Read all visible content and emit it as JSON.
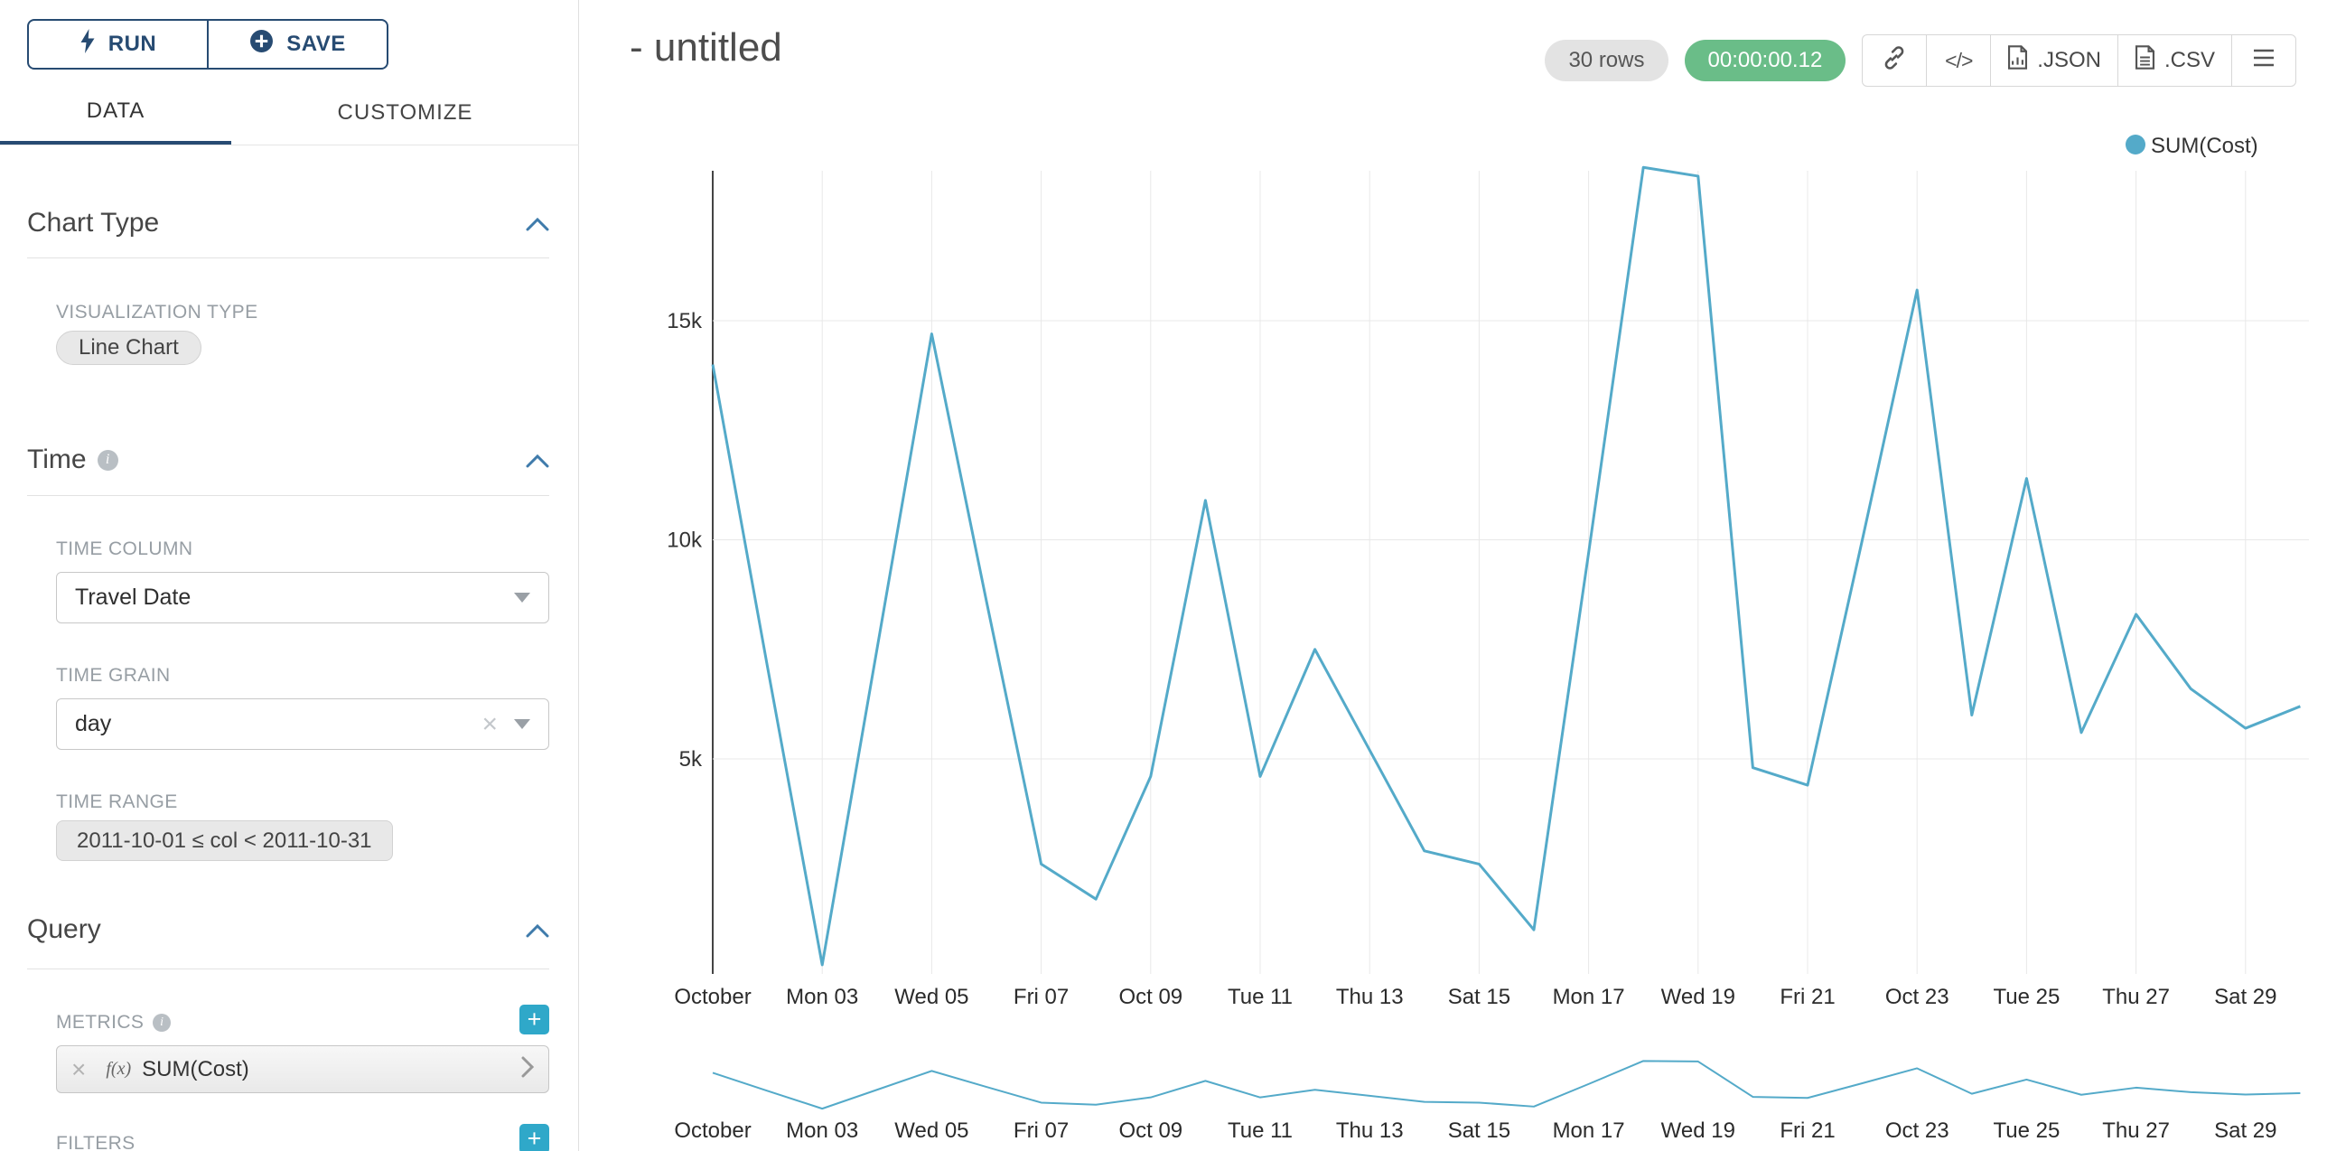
{
  "colors": {
    "accent_teal": "#2fa8c9",
    "navy": "#274b72",
    "timer_green": "#6abd88",
    "line": "#54aac9"
  },
  "sidebar": {
    "run_label": "RUN",
    "save_label": "SAVE",
    "tabs": [
      {
        "label": "DATA"
      },
      {
        "label": "CUSTOMIZE"
      }
    ],
    "sections": {
      "chart_type": {
        "title": "Chart Type",
        "viz_label": "VISUALIZATION TYPE",
        "viz_value": "Line Chart"
      },
      "time": {
        "title": "Time",
        "column_label": "TIME COLUMN",
        "column_value": "Travel Date",
        "grain_label": "TIME GRAIN",
        "grain_value": "day",
        "range_label": "TIME RANGE",
        "range_value": "2011-10-01 ≤ col < 2011-10-31"
      },
      "query": {
        "title": "Query",
        "metrics_label": "METRICS",
        "metric_fx": "f(x)",
        "metric_value": "SUM(Cost)",
        "filters_label": "FILTERS"
      }
    }
  },
  "header": {
    "title": "- untitled",
    "rows_badge": "30 rows",
    "timer_badge": "00:00:00.12",
    "embed_icon_text": "</>",
    "json_label": ".JSON",
    "csv_label": ".CSV"
  },
  "chart_data": {
    "type": "line",
    "title": "",
    "legend": [
      "SUM(Cost)"
    ],
    "legend_position": "top-right",
    "grid": true,
    "has_preview_strip": true,
    "line_color": "#54aac9",
    "xlabel": "",
    "ylabel": "",
    "ylim": [
      0,
      18600
    ],
    "y_tick_values": [
      5000,
      10000,
      15000
    ],
    "y_tick_labels": [
      "5k",
      "10k",
      "15k"
    ],
    "x_tick_labels": [
      "October",
      "Mon 03",
      "Wed 05",
      "Fri 07",
      "Oct 09",
      "Tue 11",
      "Thu 13",
      "Sat 15",
      "Mon 17",
      "Wed 19",
      "Fri 21",
      "Oct 23",
      "Tue 25",
      "Thu 27",
      "Sat 29"
    ],
    "x": [
      "2011-10-01",
      "2011-10-02",
      "2011-10-03",
      "2011-10-04",
      "2011-10-05",
      "2011-10-06",
      "2011-10-07",
      "2011-10-08",
      "2011-10-09",
      "2011-10-10",
      "2011-10-11",
      "2011-10-12",
      "2011-10-13",
      "2011-10-14",
      "2011-10-15",
      "2011-10-16",
      "2011-10-17",
      "2011-10-18",
      "2011-10-19",
      "2011-10-20",
      "2011-10-21",
      "2011-10-22",
      "2011-10-23",
      "2011-10-24",
      "2011-10-25",
      "2011-10-26",
      "2011-10-27",
      "2011-10-28",
      "2011-10-29",
      "2011-10-30"
    ],
    "series": [
      {
        "name": "SUM(Cost)",
        "values": [
          14000,
          7100,
          300,
          7500,
          14700,
          8600,
          2600,
          1800,
          4600,
          10900,
          4600,
          7500,
          5200,
          2900,
          2600,
          1100,
          9700,
          18500,
          18300,
          4800,
          4400,
          10000,
          15700,
          6000,
          11400,
          5600,
          8300,
          6600,
          5700,
          6200
        ]
      }
    ]
  }
}
